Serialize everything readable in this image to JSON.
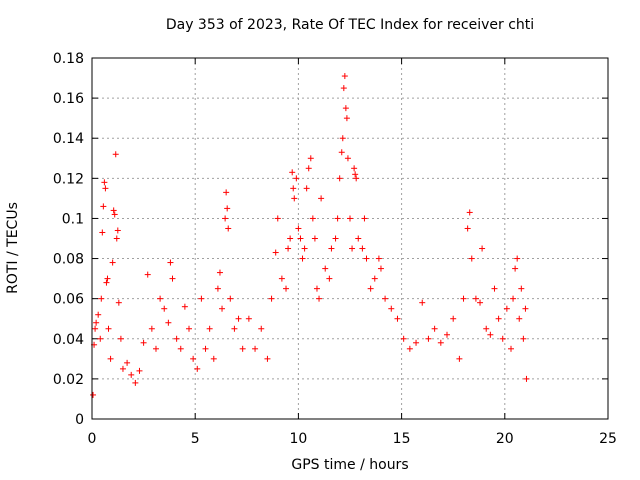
{
  "chart_data": {
    "type": "scatter",
    "title": "Day 353 of 2023, Rate Of TEC Index for receiver chti",
    "xlabel": "GPS time / hours",
    "ylabel": "ROTI / TECUs",
    "xlim": [
      0,
      25
    ],
    "ylim": [
      0,
      0.18
    ],
    "xticks": [
      "0",
      "5",
      "10",
      "15",
      "20",
      "25"
    ],
    "yticks": [
      "0",
      "0.02",
      "0.04",
      "0.06",
      "0.08",
      "0.1",
      "0.12",
      "0.14",
      "0.16",
      "0.18"
    ],
    "grid": true,
    "marker": "+",
    "color": "#ff0000",
    "series": [
      {
        "values": [
          [
            0.05,
            0.012
          ],
          [
            0.1,
            0.037
          ],
          [
            0.15,
            0.045
          ],
          [
            0.2,
            0.048
          ],
          [
            0.3,
            0.052
          ],
          [
            0.4,
            0.04
          ],
          [
            0.45,
            0.06
          ],
          [
            0.5,
            0.093
          ],
          [
            0.55,
            0.106
          ],
          [
            0.6,
            0.118
          ],
          [
            0.65,
            0.115
          ],
          [
            0.7,
            0.068
          ],
          [
            0.75,
            0.07
          ],
          [
            0.8,
            0.045
          ],
          [
            0.9,
            0.03
          ],
          [
            1.0,
            0.078
          ],
          [
            1.05,
            0.104
          ],
          [
            1.1,
            0.102
          ],
          [
            1.15,
            0.132
          ],
          [
            1.2,
            0.09
          ],
          [
            1.25,
            0.094
          ],
          [
            1.3,
            0.058
          ],
          [
            1.4,
            0.04
          ],
          [
            1.5,
            0.025
          ],
          [
            1.7,
            0.028
          ],
          [
            1.9,
            0.022
          ],
          [
            2.1,
            0.018
          ],
          [
            2.3,
            0.024
          ],
          [
            2.5,
            0.038
          ],
          [
            2.7,
            0.072
          ],
          [
            2.9,
            0.045
          ],
          [
            3.1,
            0.035
          ],
          [
            3.3,
            0.06
          ],
          [
            3.5,
            0.055
          ],
          [
            3.7,
            0.048
          ],
          [
            3.8,
            0.078
          ],
          [
            3.9,
            0.07
          ],
          [
            4.1,
            0.04
          ],
          [
            4.3,
            0.035
          ],
          [
            4.5,
            0.056
          ],
          [
            4.7,
            0.045
          ],
          [
            4.9,
            0.03
          ],
          [
            5.1,
            0.025
          ],
          [
            5.3,
            0.06
          ],
          [
            5.5,
            0.035
          ],
          [
            5.7,
            0.045
          ],
          [
            5.9,
            0.03
          ],
          [
            6.1,
            0.065
          ],
          [
            6.2,
            0.073
          ],
          [
            6.3,
            0.055
          ],
          [
            6.45,
            0.1
          ],
          [
            6.5,
            0.113
          ],
          [
            6.55,
            0.105
          ],
          [
            6.6,
            0.095
          ],
          [
            6.7,
            0.06
          ],
          [
            6.9,
            0.045
          ],
          [
            7.1,
            0.05
          ],
          [
            7.3,
            0.035
          ],
          [
            7.6,
            0.05
          ],
          [
            7.9,
            0.035
          ],
          [
            8.2,
            0.045
          ],
          [
            8.5,
            0.03
          ],
          [
            8.7,
            0.06
          ],
          [
            8.9,
            0.083
          ],
          [
            9.0,
            0.1
          ],
          [
            9.2,
            0.07
          ],
          [
            9.4,
            0.065
          ],
          [
            9.5,
            0.085
          ],
          [
            9.6,
            0.09
          ],
          [
            9.7,
            0.123
          ],
          [
            9.75,
            0.115
          ],
          [
            9.8,
            0.11
          ],
          [
            9.9,
            0.12
          ],
          [
            10.0,
            0.095
          ],
          [
            10.1,
            0.09
          ],
          [
            10.2,
            0.08
          ],
          [
            10.3,
            0.085
          ],
          [
            10.4,
            0.115
          ],
          [
            10.5,
            0.125
          ],
          [
            10.6,
            0.13
          ],
          [
            10.7,
            0.1
          ],
          [
            10.8,
            0.09
          ],
          [
            10.9,
            0.065
          ],
          [
            11.0,
            0.06
          ],
          [
            11.1,
            0.11
          ],
          [
            11.3,
            0.075
          ],
          [
            11.5,
            0.07
          ],
          [
            11.6,
            0.085
          ],
          [
            11.8,
            0.09
          ],
          [
            11.9,
            0.1
          ],
          [
            12.0,
            0.12
          ],
          [
            12.1,
            0.133
          ],
          [
            12.15,
            0.14
          ],
          [
            12.2,
            0.165
          ],
          [
            12.25,
            0.171
          ],
          [
            12.3,
            0.155
          ],
          [
            12.35,
            0.15
          ],
          [
            12.4,
            0.13
          ],
          [
            12.5,
            0.1
          ],
          [
            12.6,
            0.085
          ],
          [
            12.7,
            0.125
          ],
          [
            12.75,
            0.122
          ],
          [
            12.8,
            0.12
          ],
          [
            12.9,
            0.09
          ],
          [
            13.1,
            0.085
          ],
          [
            13.2,
            0.1
          ],
          [
            13.3,
            0.08
          ],
          [
            13.5,
            0.065
          ],
          [
            13.7,
            0.07
          ],
          [
            13.9,
            0.08
          ],
          [
            14.0,
            0.075
          ],
          [
            14.2,
            0.06
          ],
          [
            14.5,
            0.055
          ],
          [
            14.8,
            0.05
          ],
          [
            15.1,
            0.04
          ],
          [
            15.4,
            0.035
          ],
          [
            15.7,
            0.038
          ],
          [
            16.0,
            0.058
          ],
          [
            16.3,
            0.04
          ],
          [
            16.6,
            0.045
          ],
          [
            16.9,
            0.038
          ],
          [
            17.2,
            0.042
          ],
          [
            17.5,
            0.05
          ],
          [
            17.8,
            0.03
          ],
          [
            18.0,
            0.06
          ],
          [
            18.2,
            0.095
          ],
          [
            18.3,
            0.103
          ],
          [
            18.4,
            0.08
          ],
          [
            18.6,
            0.06
          ],
          [
            18.8,
            0.058
          ],
          [
            18.9,
            0.085
          ],
          [
            19.1,
            0.045
          ],
          [
            19.3,
            0.042
          ],
          [
            19.5,
            0.065
          ],
          [
            19.7,
            0.05
          ],
          [
            19.9,
            0.04
          ],
          [
            20.1,
            0.055
          ],
          [
            20.3,
            0.035
          ],
          [
            20.4,
            0.06
          ],
          [
            20.5,
            0.075
          ],
          [
            20.6,
            0.08
          ],
          [
            20.7,
            0.05
          ],
          [
            20.8,
            0.065
          ],
          [
            20.9,
            0.04
          ],
          [
            21.0,
            0.055
          ],
          [
            21.05,
            0.02
          ]
        ]
      }
    ]
  }
}
